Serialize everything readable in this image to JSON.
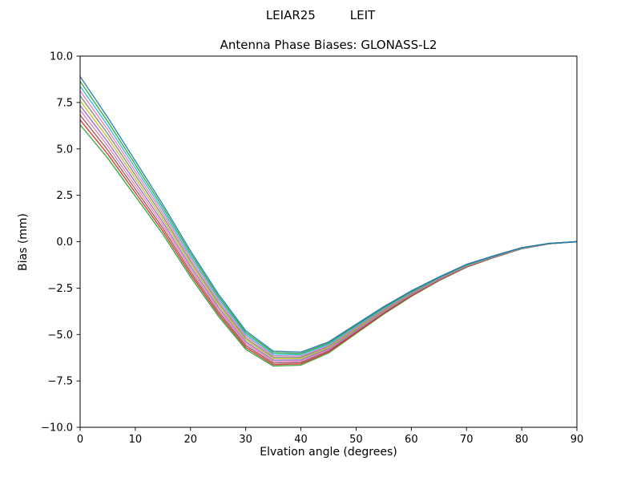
{
  "chart_data": {
    "type": "line",
    "suptitle": "LEIAR25         LEIT",
    "title": "Antenna Phase Biases: GLONASS-L2",
    "xlabel": "Elvation angle (degrees)",
    "ylabel": "Bias (mm)",
    "xlim": [
      0,
      90
    ],
    "ylim": [
      -10,
      10
    ],
    "grid": false,
    "legend_position": "none",
    "frame_color": "#000000",
    "background_color": "#ffffff",
    "xticks": [
      {
        "value": 0,
        "label": "0"
      },
      {
        "value": 10,
        "label": "10"
      },
      {
        "value": 20,
        "label": "20"
      },
      {
        "value": 30,
        "label": "30"
      },
      {
        "value": 40,
        "label": "40"
      },
      {
        "value": 50,
        "label": "50"
      },
      {
        "value": 60,
        "label": "60"
      },
      {
        "value": 70,
        "label": "70"
      },
      {
        "value": 80,
        "label": "80"
      },
      {
        "value": 90,
        "label": "90"
      }
    ],
    "yticks": [
      {
        "value": 10,
        "label": "10.0"
      },
      {
        "value": 7.5,
        "label": "7.5"
      },
      {
        "value": 5,
        "label": "5.0"
      },
      {
        "value": 2.5,
        "label": "2.5"
      },
      {
        "value": 0,
        "label": "0.0"
      },
      {
        "value": -2.5,
        "label": "−2.5"
      },
      {
        "value": -5,
        "label": "−5.0"
      },
      {
        "value": -7.5,
        "label": "−7.5"
      },
      {
        "value": -10,
        "label": "−10.0"
      }
    ],
    "x": [
      0,
      5,
      10,
      15,
      20,
      25,
      30,
      35,
      40,
      45,
      50,
      55,
      60,
      65,
      70,
      75,
      80,
      85,
      90
    ],
    "series": [
      {
        "name": "line-01",
        "color": "#2ca02c",
        "values": [
          6.3,
          4.5,
          2.45,
          0.4,
          -1.9,
          -4.0,
          -5.8,
          -6.7,
          -6.65,
          -6.0,
          -4.95,
          -3.9,
          -2.95,
          -2.1,
          -1.38,
          -0.85,
          -0.38,
          -0.11,
          0.0
        ]
      },
      {
        "name": "line-02",
        "color": "#d62728",
        "values": [
          6.56,
          4.72,
          2.64,
          0.56,
          -1.76,
          -3.88,
          -5.7,
          -6.62,
          -6.58,
          -5.94,
          -4.9,
          -3.86,
          -2.92,
          -2.08,
          -1.36,
          -0.84,
          -0.37,
          -0.11,
          0.0
        ]
      },
      {
        "name": "line-03",
        "color": "#8c564b",
        "values": [
          6.82,
          4.94,
          2.83,
          0.72,
          -1.62,
          -3.76,
          -5.6,
          -6.54,
          -6.51,
          -5.88,
          -4.85,
          -3.82,
          -2.89,
          -2.06,
          -1.35,
          -0.83,
          -0.37,
          -0.11,
          0.0
        ]
      },
      {
        "name": "line-04",
        "color": "#e377c2",
        "values": [
          7.08,
          5.16,
          3.02,
          0.88,
          -1.48,
          -3.64,
          -5.5,
          -6.46,
          -6.44,
          -5.82,
          -4.8,
          -3.78,
          -2.86,
          -2.04,
          -1.33,
          -0.82,
          -0.36,
          -0.1,
          0.0
        ]
      },
      {
        "name": "line-05",
        "color": "#9467bd",
        "values": [
          7.34,
          5.38,
          3.21,
          1.04,
          -1.34,
          -3.52,
          -5.4,
          -6.38,
          -6.37,
          -5.76,
          -4.75,
          -3.74,
          -2.83,
          -2.02,
          -1.32,
          -0.81,
          -0.36,
          -0.1,
          0.0
        ]
      },
      {
        "name": "line-06",
        "color": "#bcbd22",
        "values": [
          7.6,
          5.6,
          3.4,
          1.2,
          -1.2,
          -3.4,
          -5.3,
          -6.3,
          -6.3,
          -5.7,
          -4.7,
          -3.7,
          -2.8,
          -2.0,
          -1.3,
          -0.8,
          -0.35,
          -0.1,
          0.0
        ]
      },
      {
        "name": "line-07",
        "color": "#7f7f7f",
        "values": [
          7.86,
          5.82,
          3.59,
          1.36,
          -1.06,
          -3.28,
          -5.2,
          -6.22,
          -6.23,
          -5.64,
          -4.65,
          -3.66,
          -2.77,
          -1.98,
          -1.28,
          -0.79,
          -0.34,
          -0.1,
          0.0
        ]
      },
      {
        "name": "line-08",
        "color": "#e377c2",
        "values": [
          8.12,
          6.04,
          3.78,
          1.52,
          -0.92,
          -3.16,
          -5.1,
          -6.14,
          -6.16,
          -5.58,
          -4.6,
          -3.62,
          -2.74,
          -1.96,
          -1.27,
          -0.78,
          -0.34,
          -0.1,
          0.0
        ]
      },
      {
        "name": "line-09",
        "color": "#17becf",
        "values": [
          8.38,
          6.26,
          3.97,
          1.68,
          -0.78,
          -3.04,
          -5.0,
          -6.06,
          -6.09,
          -5.52,
          -4.55,
          -3.58,
          -2.71,
          -1.94,
          -1.25,
          -0.77,
          -0.33,
          -0.09,
          0.0
        ]
      },
      {
        "name": "line-10",
        "color": "#2ca02c",
        "values": [
          8.64,
          6.48,
          4.16,
          1.84,
          -0.64,
          -2.92,
          -4.9,
          -5.98,
          -6.02,
          -5.46,
          -4.5,
          -3.54,
          -2.68,
          -1.92,
          -1.24,
          -0.76,
          -0.33,
          -0.09,
          0.0
        ]
      },
      {
        "name": "line-11",
        "color": "#1f77b4",
        "values": [
          8.9,
          6.7,
          4.35,
          2.0,
          -0.5,
          -2.8,
          -4.8,
          -5.9,
          -5.95,
          -5.4,
          -4.45,
          -3.5,
          -2.65,
          -1.9,
          -1.22,
          -0.75,
          -0.32,
          -0.09,
          0.0
        ]
      }
    ]
  }
}
